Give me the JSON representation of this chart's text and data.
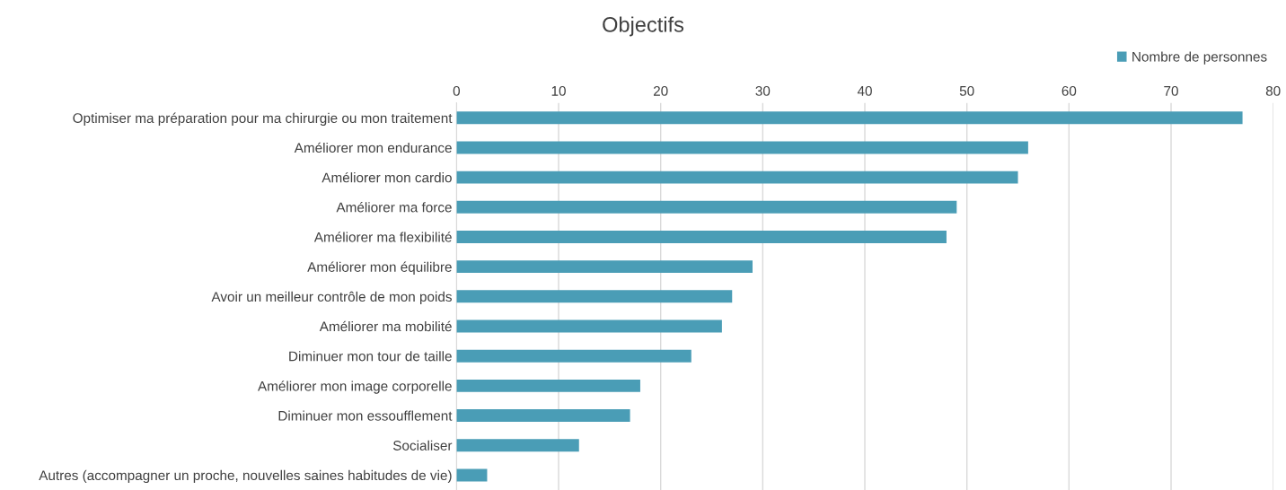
{
  "chart_data": {
    "type": "bar",
    "orientation": "horizontal",
    "title": "Objectifs",
    "categories": [
      "Optimiser ma préparation pour ma chirurgie ou mon traitement",
      "Améliorer mon endurance",
      "Améliorer mon cardio",
      "Améliorer ma force",
      "Améliorer ma flexibilité",
      "Améliorer mon équilibre",
      "Avoir un meilleur contrôle de mon poids",
      "Améliorer ma mobilité",
      "Diminuer mon tour de taille",
      "Améliorer mon image corporelle",
      "Diminuer mon essoufflement",
      "Socialiser",
      "Autres (accompagner un proche, nouvelles saines habitudes de vie)"
    ],
    "series": [
      {
        "name": "Nombre de personnes",
        "color": "#4a9db6",
        "values": [
          77,
          56,
          55,
          49,
          48,
          29,
          27,
          26,
          23,
          18,
          17,
          12,
          3
        ]
      }
    ],
    "xlim": [
      0,
      80
    ],
    "xticks": [
      0,
      10,
      20,
      30,
      40,
      50,
      60,
      70,
      80
    ],
    "grid": "x",
    "legend": "top right"
  }
}
